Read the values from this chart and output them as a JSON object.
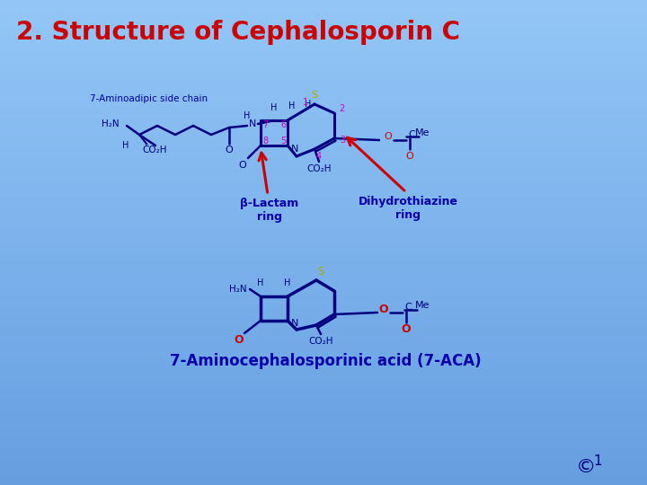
{
  "title": "2. Structure of Cephalosporin C",
  "title_color": "#cc0000",
  "label_7aca": "7-Aminocephalosporinic acid (7-ACA)",
  "label_sidechain": "7-Aminoadipic side chain",
  "label_betalactam": "β-Lactam\nring",
  "label_dihydro": "Dihydrothiazine\nring",
  "copyright": "©",
  "superscript": "1",
  "bond_color": "#000080",
  "ring_num_color": "#cc00cc",
  "s_color": "#aaaa00",
  "o_color": "#cc0000",
  "red_color": "#cc0000",
  "label_blue": "#0000aa"
}
